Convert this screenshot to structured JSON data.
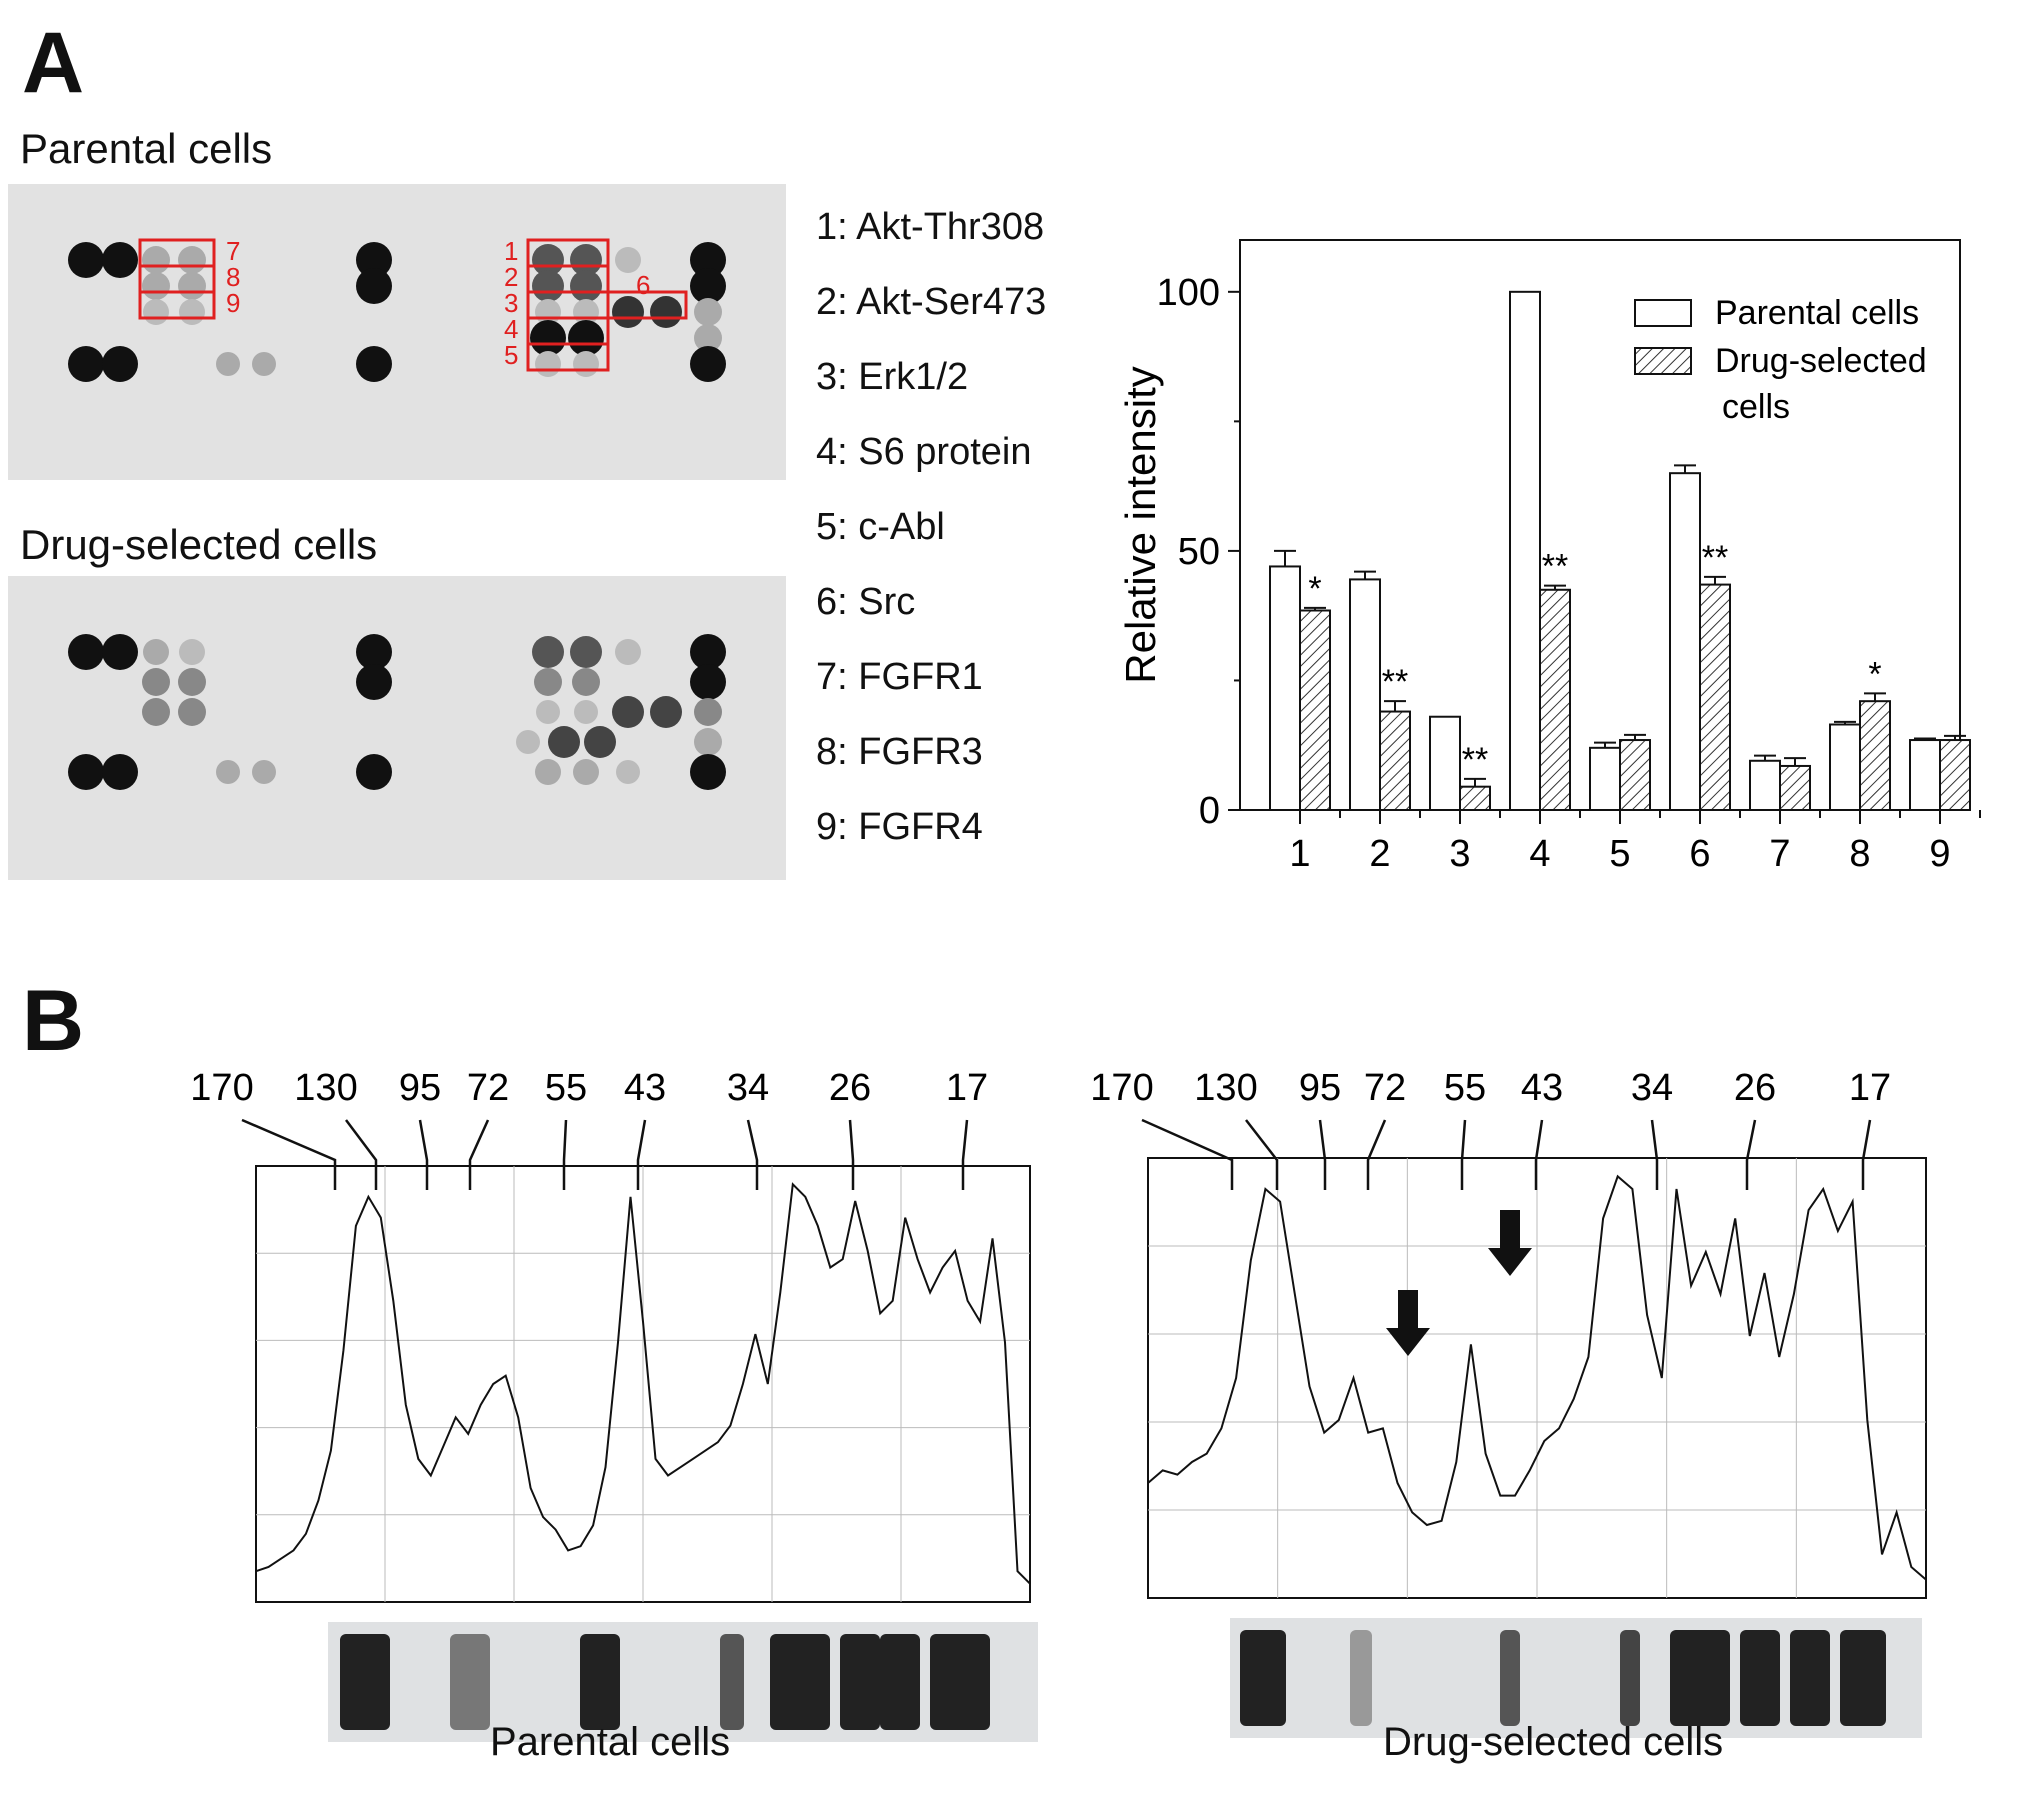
{
  "panel_a": {
    "letter": "A",
    "blots": {
      "parental_title": "Parental cells",
      "drug_title": "Drug-selected cells"
    },
    "box_labels": [
      "1",
      "2",
      "3",
      "4",
      "5",
      "6",
      "7",
      "8",
      "9"
    ],
    "legend_items": [
      "1: Akt-Thr308",
      "2: Akt-Ser473",
      "3: Erk1/2",
      "4: S6 protein",
      "5: c-Abl",
      "6: Src",
      "7: FGFR1",
      "8: FGFR3",
      "9: FGFR4"
    ]
  },
  "panel_b": {
    "letter": "B",
    "marker_labels": [
      "170",
      "130",
      "95",
      "72",
      "55",
      "43",
      "34",
      "26",
      "17"
    ],
    "left_caption": "Parental cells",
    "right_caption": "Drug-selected cells"
  },
  "chart_data": [
    {
      "type": "bar",
      "title": "",
      "xlabel": "",
      "ylabel": "Relative intensity",
      "ylim": [
        0,
        110
      ],
      "yticks": [
        0,
        50,
        100
      ],
      "categories": [
        "1",
        "2",
        "3",
        "4",
        "5",
        "6",
        "7",
        "8",
        "9"
      ],
      "series": [
        {
          "name": "Parental cells",
          "values": [
            47,
            44.5,
            18,
            100,
            12,
            65,
            9.5,
            16.5,
            13.5
          ],
          "errors": [
            3,
            1.5,
            0,
            0,
            1,
            1.5,
            1,
            0.5,
            0.3
          ]
        },
        {
          "name": "Drug-selected cells",
          "values": [
            38.5,
            19,
            4.5,
            42.5,
            13.5,
            43.5,
            8.5,
            21,
            13.5
          ],
          "errors": [
            0.5,
            2,
            1.5,
            0.8,
            1,
            1.5,
            1.5,
            1.5,
            0.8
          ]
        }
      ],
      "significance": [
        "*",
        "**",
        "**",
        "**",
        "",
        "**",
        "",
        "*",
        ""
      ],
      "legend_position": "top-right",
      "grid": false
    },
    {
      "type": "line",
      "name": "Parental cells",
      "x_markers": [
        "170",
        "130",
        "95",
        "72",
        "55",
        "43",
        "34",
        "26",
        "17"
      ],
      "profile": [
        0.95,
        0.94,
        0.92,
        0.9,
        0.86,
        0.78,
        0.66,
        0.42,
        0.12,
        0.05,
        0.1,
        0.3,
        0.55,
        0.68,
        0.72,
        0.65,
        0.58,
        0.62,
        0.55,
        0.5,
        0.48,
        0.58,
        0.75,
        0.82,
        0.85,
        0.9,
        0.89,
        0.84,
        0.7,
        0.4,
        0.05,
        0.35,
        0.68,
        0.72,
        0.7,
        0.68,
        0.66,
        0.64,
        0.6,
        0.5,
        0.38,
        0.5,
        0.28,
        0.02,
        0.05,
        0.12,
        0.22,
        0.2,
        0.06,
        0.18,
        0.33,
        0.3,
        0.1,
        0.2,
        0.28,
        0.22,
        0.18,
        0.3,
        0.35,
        0.15,
        0.4,
        0.95,
        0.98
      ]
    },
    {
      "type": "line",
      "name": "Drug-selected cells",
      "x_markers": [
        "170",
        "130",
        "95",
        "72",
        "55",
        "43",
        "34",
        "26",
        "17"
      ],
      "profile": [
        0.75,
        0.72,
        0.73,
        0.7,
        0.68,
        0.62,
        0.5,
        0.22,
        0.05,
        0.08,
        0.3,
        0.52,
        0.63,
        0.6,
        0.5,
        0.63,
        0.62,
        0.75,
        0.82,
        0.85,
        0.84,
        0.7,
        0.42,
        0.68,
        0.78,
        0.78,
        0.72,
        0.65,
        0.62,
        0.55,
        0.45,
        0.12,
        0.02,
        0.05,
        0.35,
        0.5,
        0.05,
        0.28,
        0.2,
        0.3,
        0.12,
        0.4,
        0.25,
        0.45,
        0.3,
        0.1,
        0.05,
        0.15,
        0.08,
        0.6,
        0.92,
        0.82,
        0.95,
        0.98
      ]
    }
  ]
}
